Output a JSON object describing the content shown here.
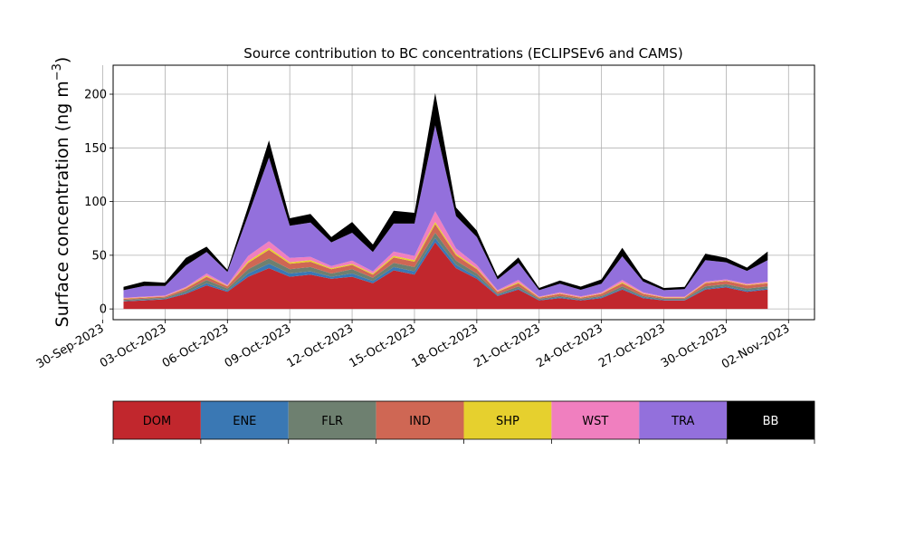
{
  "chart_data": {
    "type": "area",
    "stacked": true,
    "title": "Source contribution to BC concentrations (ECLIPSEv6 and CAMS)",
    "ylabel": "Surface concentration (ng m",
    "ylabel_unit_exp": "−3",
    "ylabel_close": ")",
    "xlabel": "",
    "ylim": [
      -10,
      227
    ],
    "xlim": [
      "2023-09-30T12:00",
      "2023-11-03T06:00"
    ],
    "y_ticks": [
      0,
      50,
      100,
      150,
      200
    ],
    "x_ticks": [
      {
        "date": "2023-09-30",
        "label": "30-Sep-2023"
      },
      {
        "date": "2023-10-03",
        "label": "03-Oct-2023"
      },
      {
        "date": "2023-10-06",
        "label": "06-Oct-2023"
      },
      {
        "date": "2023-10-09",
        "label": "09-Oct-2023"
      },
      {
        "date": "2023-10-12",
        "label": "12-Oct-2023"
      },
      {
        "date": "2023-10-15",
        "label": "15-Oct-2023"
      },
      {
        "date": "2023-10-18",
        "label": "18-Oct-2023"
      },
      {
        "date": "2023-10-21",
        "label": "21-Oct-2023"
      },
      {
        "date": "2023-10-24",
        "label": "24-Oct-2023"
      },
      {
        "date": "2023-10-27",
        "label": "27-Oct-2023"
      },
      {
        "date": "2023-10-30",
        "label": "30-Oct-2023"
      },
      {
        "date": "2023-11-02",
        "label": "02-Nov-2023"
      }
    ],
    "grid": true,
    "legend_position": "bottom",
    "x": [
      "2023-10-01",
      "2023-10-02",
      "2023-10-03",
      "2023-10-04",
      "2023-10-05",
      "2023-10-06",
      "2023-10-07",
      "2023-10-08",
      "2023-10-09",
      "2023-10-10",
      "2023-10-11",
      "2023-10-12",
      "2023-10-13",
      "2023-10-14",
      "2023-10-15",
      "2023-10-16",
      "2023-10-17",
      "2023-10-18",
      "2023-10-19",
      "2023-10-20",
      "2023-10-21",
      "2023-10-22",
      "2023-10-23",
      "2023-10-24",
      "2023-10-25",
      "2023-10-26",
      "2023-10-27",
      "2023-10-28",
      "2023-10-29",
      "2023-10-30",
      "2023-10-31",
      "2023-11-01"
    ],
    "series": [
      {
        "name": "DOM",
        "color": "#c1272d",
        "values": [
          7,
          8,
          9,
          14,
          22,
          16,
          30,
          38,
          30,
          32,
          28,
          30,
          24,
          36,
          32,
          62,
          38,
          28,
          12,
          18,
          8,
          10,
          8,
          10,
          18,
          10,
          8,
          8,
          18,
          20,
          16,
          18
        ]
      },
      {
        "name": "ENE",
        "color": "#3a78b4",
        "values": [
          0.5,
          0.5,
          0.5,
          1,
          2,
          1,
          3,
          4,
          3,
          3,
          2,
          3,
          2,
          3,
          3,
          4,
          3,
          2,
          1,
          1,
          0.5,
          1,
          0.5,
          1,
          1,
          1,
          0.5,
          0.5,
          1,
          1,
          1,
          1
        ]
      },
      {
        "name": "FLR",
        "color": "#6e8070",
        "values": [
          1,
          1,
          1,
          2,
          3,
          2,
          4,
          5,
          4,
          4,
          3,
          4,
          3,
          4,
          4,
          5,
          4,
          3,
          1,
          2,
          1,
          1,
          1,
          1,
          2,
          1,
          1,
          1,
          2,
          2,
          2,
          2
        ]
      },
      {
        "name": "IND",
        "color": "#cf6754",
        "values": [
          1,
          1,
          1,
          2,
          3,
          2,
          6,
          8,
          5,
          5,
          4,
          4,
          3,
          5,
          5,
          8,
          5,
          4,
          2,
          3,
          1,
          2,
          1,
          2,
          3,
          2,
          1,
          1,
          3,
          3,
          3,
          3
        ]
      },
      {
        "name": "SHP",
        "color": "#e6d02e",
        "values": [
          0.3,
          0.3,
          0.3,
          0.5,
          1,
          0.5,
          1.5,
          2,
          1.5,
          1.5,
          1,
          1,
          1,
          1.5,
          1.5,
          2,
          1.5,
          1,
          0.5,
          1,
          0.3,
          0.5,
          0.3,
          0.5,
          1,
          0.5,
          0.3,
          0.3,
          0.5,
          0.5,
          0.5,
          0.5
        ]
      },
      {
        "name": "WST",
        "color": "#f07fbf",
        "values": [
          0.7,
          0.7,
          0.7,
          1,
          2,
          1,
          5,
          6,
          4,
          3,
          2,
          3,
          2,
          4,
          4,
          10,
          5,
          3,
          1,
          2,
          0.7,
          1,
          1,
          1,
          2,
          1,
          0.7,
          0.7,
          1,
          1,
          1,
          1
        ]
      },
      {
        "name": "TRA",
        "color": "#9370dc",
        "values": [
          7,
          10,
          9,
          20,
          20,
          12,
          38,
          78,
          30,
          32,
          22,
          26,
          18,
          26,
          30,
          80,
          30,
          26,
          10,
          16,
          6,
          8,
          6,
          8,
          22,
          10,
          6,
          7,
          20,
          16,
          12,
          20
        ]
      },
      {
        "name": "BB",
        "color": "#000000",
        "values": [
          3,
          4,
          3,
          7,
          5,
          2,
          8,
          16,
          7,
          8,
          5,
          10,
          7,
          12,
          10,
          30,
          8,
          6,
          3,
          5,
          2,
          3,
          3,
          4,
          8,
          3,
          2,
          2,
          6,
          4,
          3,
          8
        ]
      }
    ]
  }
}
